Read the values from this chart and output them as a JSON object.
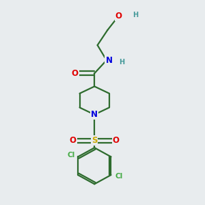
{
  "bg_color": "#e8ecee",
  "bond_color": "#2d6b2d",
  "atom_colors": {
    "O": "#e00000",
    "N": "#0000dd",
    "S": "#ccaa00",
    "Cl": "#44aa44",
    "H": "#449999",
    "C": "#2d6b2d"
  },
  "font_size": 8.5,
  "line_width": 1.6,
  "figsize": [
    3.0,
    3.0
  ],
  "dpi": 100
}
